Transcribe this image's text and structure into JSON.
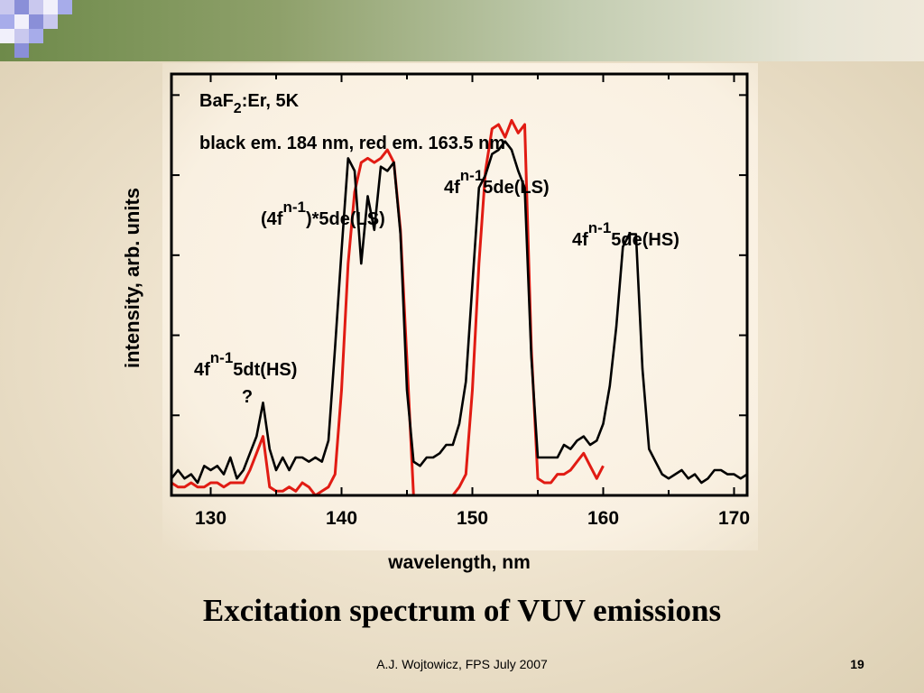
{
  "slide": {
    "title": "Excitation spectrum of VUV emissions",
    "footer": "A.J. Wojtowicz, FPS July 2007",
    "page_number": "19",
    "colors": {
      "header_dark": "#6e8a4a",
      "header_light": "#e7e5d6",
      "square_blue": "#8a8fd8",
      "square_lavender": "#c9c8ee"
    }
  },
  "chart_data": {
    "type": "line",
    "title": "",
    "xlabel": "wavelength, nm",
    "ylabel": "intensity, arb. units",
    "xlim": [
      127,
      171
    ],
    "ylim": [
      0,
      1.0
    ],
    "xticks": [
      130,
      140,
      150,
      160,
      170
    ],
    "xtick_labels": [
      "130",
      "140",
      "150",
      "160",
      "170"
    ],
    "yticks_unlabeled": true,
    "grid": false,
    "legend": null,
    "annotations": {
      "sample_main": "BaF",
      "sample_sub": "2",
      "sample_rest": ":Er, 5K",
      "emission": "black em. 184 nm, red em. 163.5 nm",
      "peak_dt": {
        "prefix": "4f",
        "sup": "n-1",
        "suffix": "5dt(HS)",
        "question": "?"
      },
      "peak_star": {
        "prefix": "(4f",
        "sup": "n-1",
        "suffix": ")*5de(LS)"
      },
      "peak_ls": {
        "prefix": "4f",
        "sup": "n-1",
        "suffix": "5de(LS)"
      },
      "peak_hs": {
        "prefix": "4f",
        "sup": "n-1",
        "suffix": "5de(HS)"
      }
    },
    "series": [
      {
        "color": "#000000",
        "x": [
          127,
          127.5,
          128,
          128.5,
          129,
          129.5,
          130,
          130.5,
          131,
          131.5,
          132,
          132.5,
          133,
          133.5,
          134,
          134.5,
          135,
          135.5,
          136,
          136.5,
          137,
          137.5,
          138,
          138.5,
          139,
          139.5,
          140,
          140.5,
          141,
          141.5,
          142,
          142.5,
          143,
          143.5,
          144,
          144.5,
          145,
          145.5,
          146,
          146.5,
          147,
          147.5,
          148,
          148.5,
          149,
          149.5,
          150,
          150.5,
          151,
          151.5,
          152,
          152.5,
          153,
          153.5,
          154,
          154.5,
          155,
          155.5,
          156,
          156.5,
          157,
          157.5,
          158,
          158.5,
          159,
          159.5,
          160,
          160.5,
          161,
          161.5,
          162,
          162.5,
          163,
          163.5,
          164,
          164.5,
          165,
          165.5,
          166,
          166.5,
          167,
          167.5,
          168,
          168.5,
          169,
          169.5,
          170,
          170.5,
          171
        ],
        "y": [
          0.04,
          0.06,
          0.04,
          0.05,
          0.03,
          0.07,
          0.06,
          0.07,
          0.05,
          0.09,
          0.04,
          0.06,
          0.1,
          0.14,
          0.22,
          0.11,
          0.06,
          0.09,
          0.06,
          0.09,
          0.09,
          0.08,
          0.09,
          0.08,
          0.13,
          0.35,
          0.58,
          0.8,
          0.77,
          0.55,
          0.71,
          0.63,
          0.78,
          0.77,
          0.79,
          0.62,
          0.25,
          0.08,
          0.07,
          0.09,
          0.09,
          0.1,
          0.12,
          0.12,
          0.17,
          0.27,
          0.5,
          0.73,
          0.76,
          0.81,
          0.82,
          0.84,
          0.82,
          0.77,
          0.73,
          0.33,
          0.09,
          0.09,
          0.09,
          0.09,
          0.12,
          0.11,
          0.13,
          0.14,
          0.12,
          0.13,
          0.17,
          0.26,
          0.4,
          0.59,
          0.62,
          0.62,
          0.3,
          0.11,
          0.08,
          0.05,
          0.04,
          0.05,
          0.06,
          0.04,
          0.05,
          0.03,
          0.04,
          0.06,
          0.06,
          0.05,
          0.05,
          0.04,
          0.05
        ]
      },
      {
        "color": "#e11b13",
        "x": [
          127,
          127.5,
          128,
          128.5,
          129,
          129.5,
          130,
          130.5,
          131,
          131.5,
          132,
          132.5,
          133,
          133.5,
          134,
          134.5,
          135,
          135.5,
          136,
          136.5,
          137,
          137.5,
          138,
          138.5,
          139,
          139.5,
          140,
          140.5,
          141,
          141.5,
          142,
          142.5,
          143,
          143.5,
          144,
          144.5,
          145,
          145.5,
          146,
          146.5,
          147,
          147.5,
          148,
          148.5,
          149,
          149.5,
          150,
          150.5,
          151,
          151.5,
          152,
          152.5,
          153,
          153.5,
          154,
          154.5,
          155,
          155.5,
          156,
          156.5,
          157,
          157.5,
          158,
          158.5,
          159,
          159.5,
          160
        ],
        "y": [
          0.03,
          0.02,
          0.02,
          0.03,
          0.02,
          0.02,
          0.03,
          0.03,
          0.02,
          0.03,
          0.03,
          0.03,
          0.06,
          0.1,
          0.14,
          0.02,
          0.01,
          0.01,
          0.02,
          0.01,
          0.03,
          0.02,
          0.0,
          0.01,
          0.02,
          0.05,
          0.25,
          0.55,
          0.72,
          0.79,
          0.8,
          0.79,
          0.8,
          0.82,
          0.79,
          0.63,
          0.32,
          0.0,
          0.0,
          0.0,
          0.0,
          0.0,
          0.0,
          0.0,
          0.02,
          0.05,
          0.25,
          0.55,
          0.77,
          0.87,
          0.88,
          0.85,
          0.89,
          0.86,
          0.88,
          0.35,
          0.04,
          0.03,
          0.03,
          0.05,
          0.05,
          0.06,
          0.08,
          0.1,
          0.07,
          0.04,
          0.07
        ]
      }
    ]
  }
}
